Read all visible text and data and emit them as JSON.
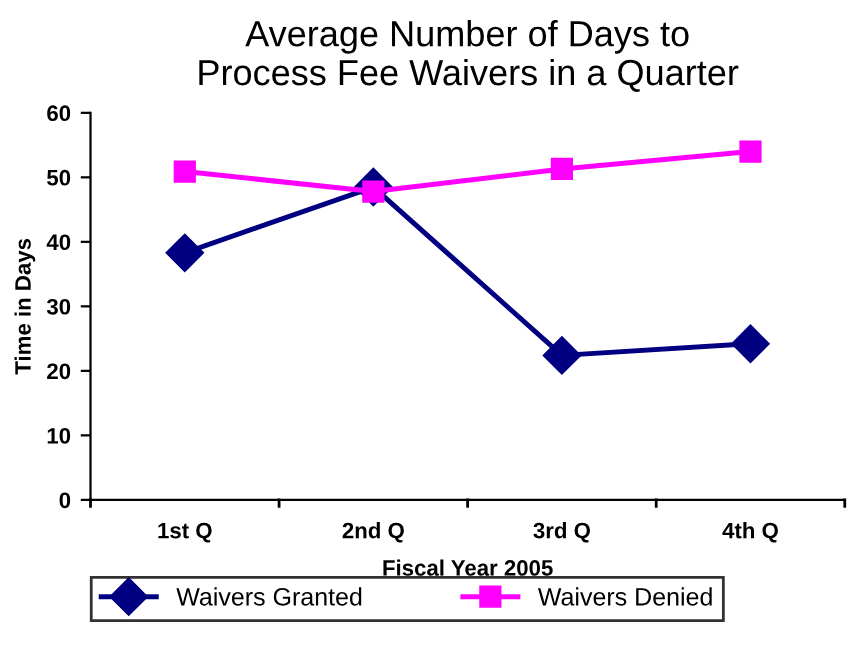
{
  "chart_data": {
    "type": "line",
    "title": "Average Number of Days to\nProcess Fee Waivers in a Quarter",
    "xlabel": "Fiscal Year 2005",
    "ylabel": "Time in Days",
    "categories": [
      "1st Q",
      "2nd Q",
      "3rd Q",
      "4th Q"
    ],
    "series": [
      {
        "name": "Waivers Granted",
        "color": "#000080",
        "marker": "diamond",
        "values": [
          38.3,
          48.5,
          22.4,
          24.2
        ]
      },
      {
        "name": "Waivers Denied",
        "color": "#ff00ff",
        "marker": "square",
        "values": [
          50.9,
          47.8,
          51.3,
          54.0
        ]
      }
    ],
    "ylim": [
      0,
      60
    ],
    "yticks": [
      0,
      10,
      20,
      30,
      40,
      50,
      60
    ],
    "grid": false,
    "legend": "bottom",
    "line_style": "solid"
  }
}
